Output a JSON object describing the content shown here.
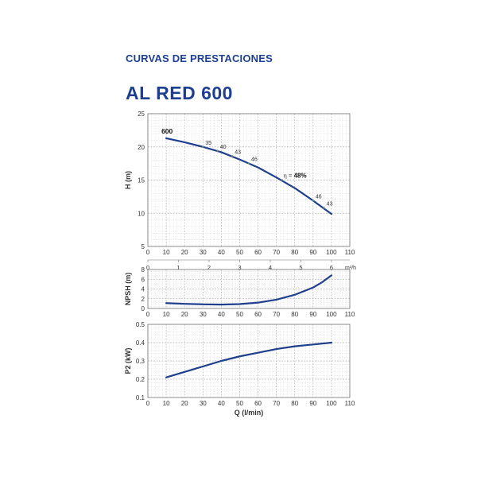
{
  "header": {
    "section_title": "CURVAS DE PRESTACIONES",
    "model": "AL RED 600"
  },
  "colors": {
    "accent": "#1d3f93",
    "curve": "#1f3f8c",
    "grid_major": "#b5b5b5",
    "grid_minor": "#dedede",
    "axis_text": "#333333"
  },
  "chart_data": [
    {
      "type": "line",
      "title": "",
      "ylabel": "H (m)",
      "xlabel": "",
      "xlim": [
        0,
        110
      ],
      "ylim": [
        5,
        25
      ],
      "xticks": [
        "0",
        "10",
        "20",
        "30",
        "40",
        "50",
        "60",
        "70",
        "80",
        "90",
        "100",
        "110"
      ],
      "yticks": [
        "5",
        "10",
        "15",
        "20",
        "25"
      ],
      "secondary_x_axis": {
        "label": "m³/h",
        "ticks": [
          "0",
          "1",
          "2",
          "3",
          "4",
          "5",
          "6"
        ]
      },
      "grid": true,
      "series": [
        {
          "name": "600",
          "x": [
            10,
            20,
            30,
            40,
            50,
            60,
            70,
            80,
            90,
            100
          ],
          "values": [
            21.3,
            20.7,
            20.0,
            19.2,
            18.1,
            16.9,
            15.4,
            13.8,
            11.9,
            9.9
          ]
        }
      ],
      "efficiency_marks": [
        {
          "x": 30,
          "y": 20.0,
          "label": "35"
        },
        {
          "x": 38,
          "y": 19.4,
          "label": "40"
        },
        {
          "x": 46,
          "y": 18.6,
          "label": "43"
        },
        {
          "x": 55,
          "y": 17.5,
          "label": "46"
        },
        {
          "x": 73,
          "y": 15.0,
          "label": "48%",
          "prefix": "η ="
        },
        {
          "x": 90,
          "y": 11.9,
          "label": "46"
        },
        {
          "x": 96,
          "y": 10.8,
          "label": "43"
        }
      ]
    },
    {
      "type": "line",
      "title": "",
      "ylabel": "NPSH (m)",
      "xlabel": "",
      "xlim": [
        0,
        110
      ],
      "ylim": [
        0,
        8
      ],
      "xticks": [
        "0",
        "10",
        "20",
        "30",
        "40",
        "50",
        "60",
        "70",
        "80",
        "90",
        "100",
        "110"
      ],
      "yticks": [
        "0",
        "2",
        "4",
        "6",
        "8"
      ],
      "grid": true,
      "series": [
        {
          "x": [
            10,
            20,
            30,
            40,
            50,
            60,
            70,
            80,
            90,
            95,
            100
          ],
          "values": [
            1.1,
            0.95,
            0.85,
            0.8,
            0.9,
            1.2,
            1.8,
            2.8,
            4.3,
            5.4,
            6.8
          ]
        }
      ]
    },
    {
      "type": "line",
      "title": "",
      "ylabel": "P2 (kW)",
      "xlabel": "Q (l/min)",
      "xlim": [
        0,
        110
      ],
      "ylim": [
        0.1,
        0.5
      ],
      "xticks": [
        "0",
        "10",
        "20",
        "30",
        "40",
        "50",
        "60",
        "70",
        "80",
        "90",
        "100",
        "110"
      ],
      "yticks": [
        "0.1",
        "0.2",
        "0.3",
        "0.4",
        "0.5"
      ],
      "grid": true,
      "series": [
        {
          "x": [
            10,
            20,
            30,
            40,
            50,
            60,
            70,
            80,
            90,
            100
          ],
          "values": [
            0.21,
            0.24,
            0.27,
            0.3,
            0.325,
            0.345,
            0.365,
            0.38,
            0.39,
            0.4
          ]
        }
      ]
    }
  ]
}
